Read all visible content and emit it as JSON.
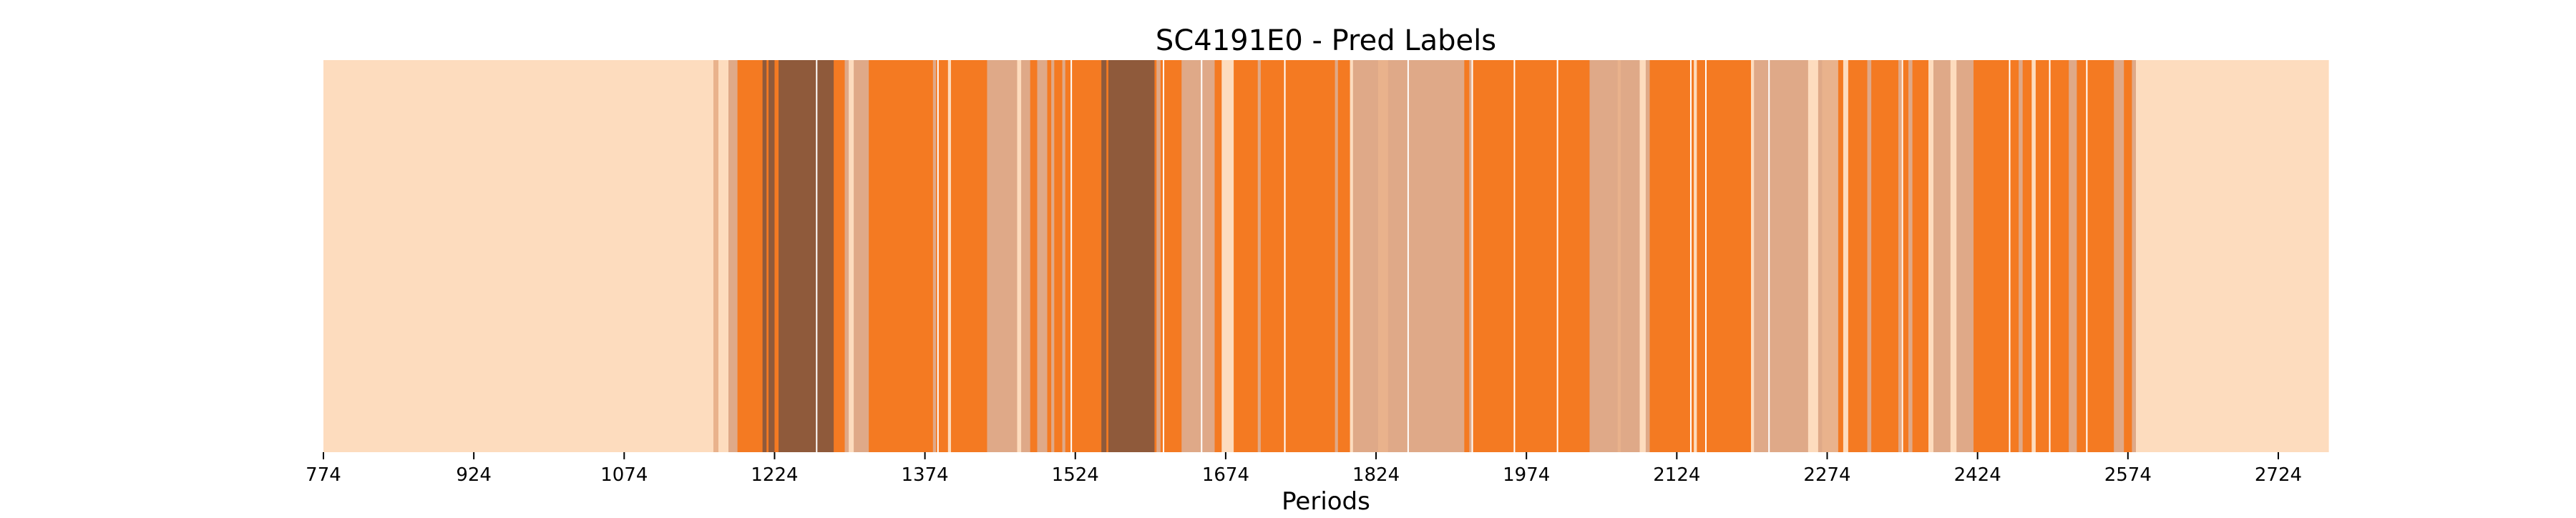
{
  "chart_data": {
    "type": "heatmap",
    "title": "SC4191E0 - Pred Labels",
    "xlabel": "Periods",
    "ylabel": "",
    "xlim": [
      774,
      2774
    ],
    "x_ticks": [
      774,
      924,
      1074,
      1224,
      1374,
      1524,
      1674,
      1824,
      1974,
      2124,
      2274,
      2424,
      2574,
      2724
    ],
    "grid": false,
    "colors": {
      "light": "#FDDCBE",
      "mid": "#DFA988",
      "mid_light": "#E9B28C",
      "orange": "#F47A22",
      "brown": "#8F5A3B",
      "axis": "#000000",
      "divider": "#FFFFFF"
    },
    "segments": [
      {
        "start": 774,
        "end": 1163,
        "color": "light"
      },
      {
        "start": 1163,
        "end": 1168,
        "color": "mid_light"
      },
      {
        "start": 1168,
        "end": 1178,
        "color": "light"
      },
      {
        "start": 1178,
        "end": 1187,
        "color": "mid"
      },
      {
        "start": 1187,
        "end": 1212,
        "color": "orange"
      },
      {
        "start": 1212,
        "end": 1216,
        "color": "brown"
      },
      {
        "start": 1216,
        "end": 1218,
        "color": "orange"
      },
      {
        "start": 1218,
        "end": 1224,
        "color": "brown"
      },
      {
        "start": 1224,
        "end": 1228,
        "color": "orange"
      },
      {
        "start": 1228,
        "end": 1283,
        "color": "brown"
      },
      {
        "start": 1283,
        "end": 1294,
        "color": "orange"
      },
      {
        "start": 1294,
        "end": 1298,
        "color": "mid"
      },
      {
        "start": 1298,
        "end": 1303,
        "color": "light"
      },
      {
        "start": 1303,
        "end": 1318,
        "color": "mid"
      },
      {
        "start": 1318,
        "end": 1382,
        "color": "orange"
      },
      {
        "start": 1382,
        "end": 1385,
        "color": "mid"
      },
      {
        "start": 1385,
        "end": 1397,
        "color": "orange"
      },
      {
        "start": 1397,
        "end": 1400,
        "color": "light"
      },
      {
        "start": 1400,
        "end": 1436,
        "color": "orange"
      },
      {
        "start": 1436,
        "end": 1466,
        "color": "mid"
      },
      {
        "start": 1466,
        "end": 1470,
        "color": "light"
      },
      {
        "start": 1470,
        "end": 1479,
        "color": "mid"
      },
      {
        "start": 1479,
        "end": 1486,
        "color": "orange"
      },
      {
        "start": 1486,
        "end": 1496,
        "color": "mid"
      },
      {
        "start": 1496,
        "end": 1500,
        "color": "orange"
      },
      {
        "start": 1500,
        "end": 1503,
        "color": "mid"
      },
      {
        "start": 1503,
        "end": 1511,
        "color": "orange"
      },
      {
        "start": 1511,
        "end": 1514,
        "color": "mid"
      },
      {
        "start": 1514,
        "end": 1550,
        "color": "orange"
      },
      {
        "start": 1550,
        "end": 1555,
        "color": "brown"
      },
      {
        "start": 1555,
        "end": 1557,
        "color": "orange"
      },
      {
        "start": 1557,
        "end": 1603,
        "color": "brown"
      },
      {
        "start": 1603,
        "end": 1605,
        "color": "orange"
      },
      {
        "start": 1605,
        "end": 1609,
        "color": "mid"
      },
      {
        "start": 1609,
        "end": 1630,
        "color": "orange"
      },
      {
        "start": 1630,
        "end": 1663,
        "color": "mid"
      },
      {
        "start": 1663,
        "end": 1670,
        "color": "orange"
      },
      {
        "start": 1670,
        "end": 1682,
        "color": "light"
      },
      {
        "start": 1682,
        "end": 1706,
        "color": "orange"
      },
      {
        "start": 1706,
        "end": 1709,
        "color": "mid"
      },
      {
        "start": 1709,
        "end": 1783,
        "color": "orange"
      },
      {
        "start": 1783,
        "end": 1786,
        "color": "mid"
      },
      {
        "start": 1786,
        "end": 1798,
        "color": "orange"
      },
      {
        "start": 1798,
        "end": 1801,
        "color": "light"
      },
      {
        "start": 1801,
        "end": 1826,
        "color": "mid"
      },
      {
        "start": 1826,
        "end": 1836,
        "color": "mid_light"
      },
      {
        "start": 1836,
        "end": 1912,
        "color": "mid"
      },
      {
        "start": 1912,
        "end": 1917,
        "color": "orange"
      },
      {
        "start": 1917,
        "end": 1920,
        "color": "mid"
      },
      {
        "start": 1920,
        "end": 2037,
        "color": "orange"
      },
      {
        "start": 2037,
        "end": 2065,
        "color": "mid"
      },
      {
        "start": 2065,
        "end": 2068,
        "color": "mid_light"
      },
      {
        "start": 2068,
        "end": 2087,
        "color": "mid"
      },
      {
        "start": 2087,
        "end": 2093,
        "color": "light"
      },
      {
        "start": 2093,
        "end": 2097,
        "color": "mid"
      },
      {
        "start": 2097,
        "end": 2141,
        "color": "orange"
      },
      {
        "start": 2141,
        "end": 2144,
        "color": "light"
      },
      {
        "start": 2144,
        "end": 2198,
        "color": "orange"
      },
      {
        "start": 2198,
        "end": 2201,
        "color": "light"
      },
      {
        "start": 2201,
        "end": 2255,
        "color": "mid"
      },
      {
        "start": 2255,
        "end": 2265,
        "color": "light"
      },
      {
        "start": 2265,
        "end": 2269,
        "color": "mid"
      },
      {
        "start": 2269,
        "end": 2285,
        "color": "mid_light"
      },
      {
        "start": 2285,
        "end": 2290,
        "color": "orange"
      },
      {
        "start": 2290,
        "end": 2295,
        "color": "light"
      },
      {
        "start": 2295,
        "end": 2314,
        "color": "orange"
      },
      {
        "start": 2314,
        "end": 2318,
        "color": "mid"
      },
      {
        "start": 2318,
        "end": 2345,
        "color": "orange"
      },
      {
        "start": 2345,
        "end": 2348,
        "color": "mid"
      },
      {
        "start": 2348,
        "end": 2355,
        "color": "orange"
      },
      {
        "start": 2355,
        "end": 2359,
        "color": "mid"
      },
      {
        "start": 2359,
        "end": 2375,
        "color": "orange"
      },
      {
        "start": 2375,
        "end": 2380,
        "color": "light"
      },
      {
        "start": 2380,
        "end": 2397,
        "color": "mid"
      },
      {
        "start": 2397,
        "end": 2403,
        "color": "light"
      },
      {
        "start": 2403,
        "end": 2420,
        "color": "mid"
      },
      {
        "start": 2420,
        "end": 2465,
        "color": "orange"
      },
      {
        "start": 2465,
        "end": 2469,
        "color": "mid"
      },
      {
        "start": 2469,
        "end": 2478,
        "color": "orange"
      },
      {
        "start": 2478,
        "end": 2482,
        "color": "light"
      },
      {
        "start": 2482,
        "end": 2515,
        "color": "orange"
      },
      {
        "start": 2515,
        "end": 2523,
        "color": "mid"
      },
      {
        "start": 2523,
        "end": 2560,
        "color": "orange"
      },
      {
        "start": 2560,
        "end": 2570,
        "color": "mid"
      },
      {
        "start": 2570,
        "end": 2578,
        "color": "orange"
      },
      {
        "start": 2578,
        "end": 2582,
        "color": "mid"
      },
      {
        "start": 2582,
        "end": 2774,
        "color": "light"
      }
    ],
    "white_dividers": [
      1266,
      1387,
      1520,
      1612,
      1650,
      1733,
      1856,
      1920,
      1962,
      2005,
      2138,
      2153,
      2216,
      2349,
      2456,
      2496,
      2533
    ]
  }
}
